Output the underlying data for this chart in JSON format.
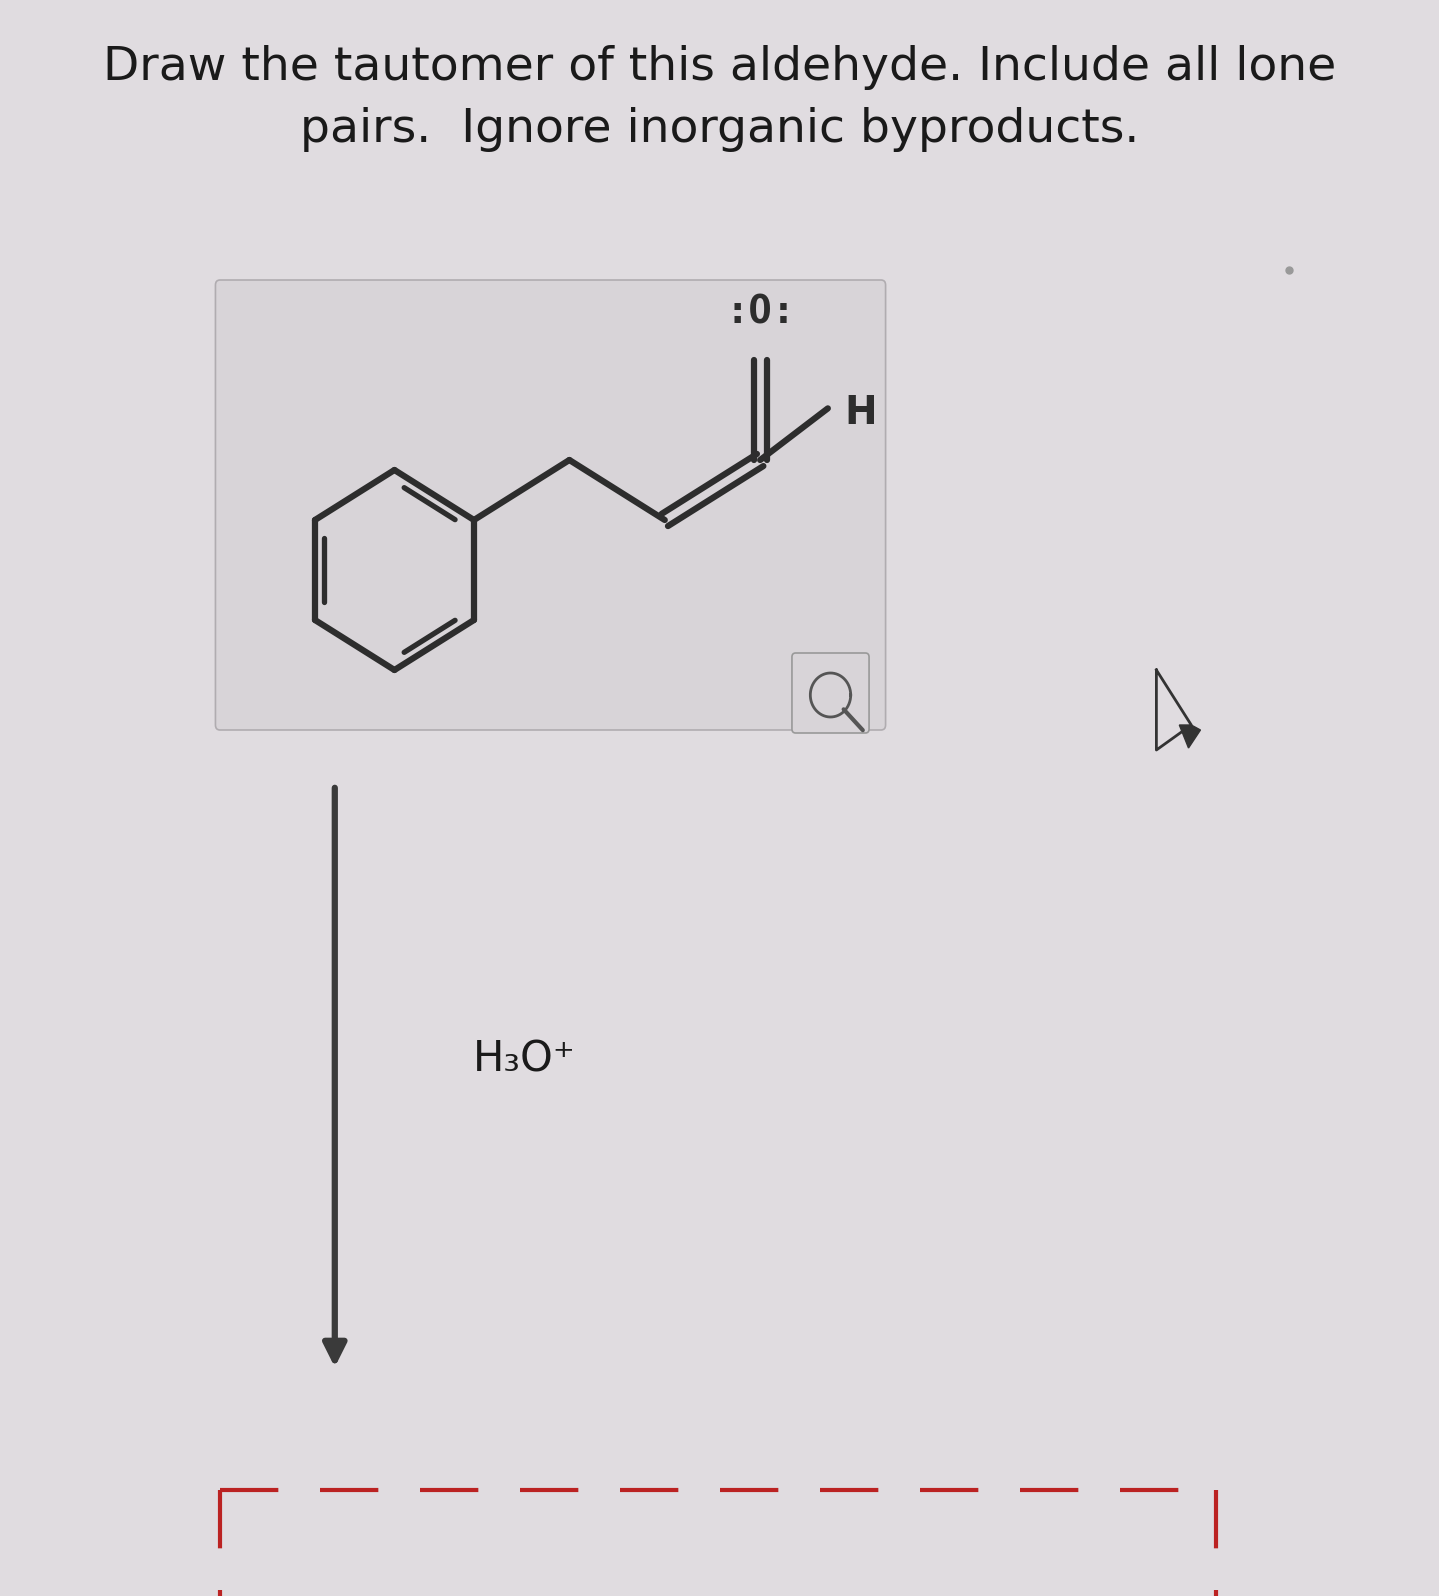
{
  "background_color": "#e0dce0",
  "title_line1": "Draw the tautomer of this aldehyde. Include all lone",
  "title_line2": "pairs.  Ignore inorganic byproducts.",
  "title_fontsize": 34,
  "title_color": "#1a1a1a",
  "reagent_text": "H₃O⁺",
  "reagent_fontsize": 30,
  "arrow_color": "#3a3a3a",
  "dashed_box_color": "#bb2222",
  "molecule_color": "#2d2d2d",
  "box_facecolor": "#d8d4d8",
  "box_edgecolor": "#b0acb0"
}
